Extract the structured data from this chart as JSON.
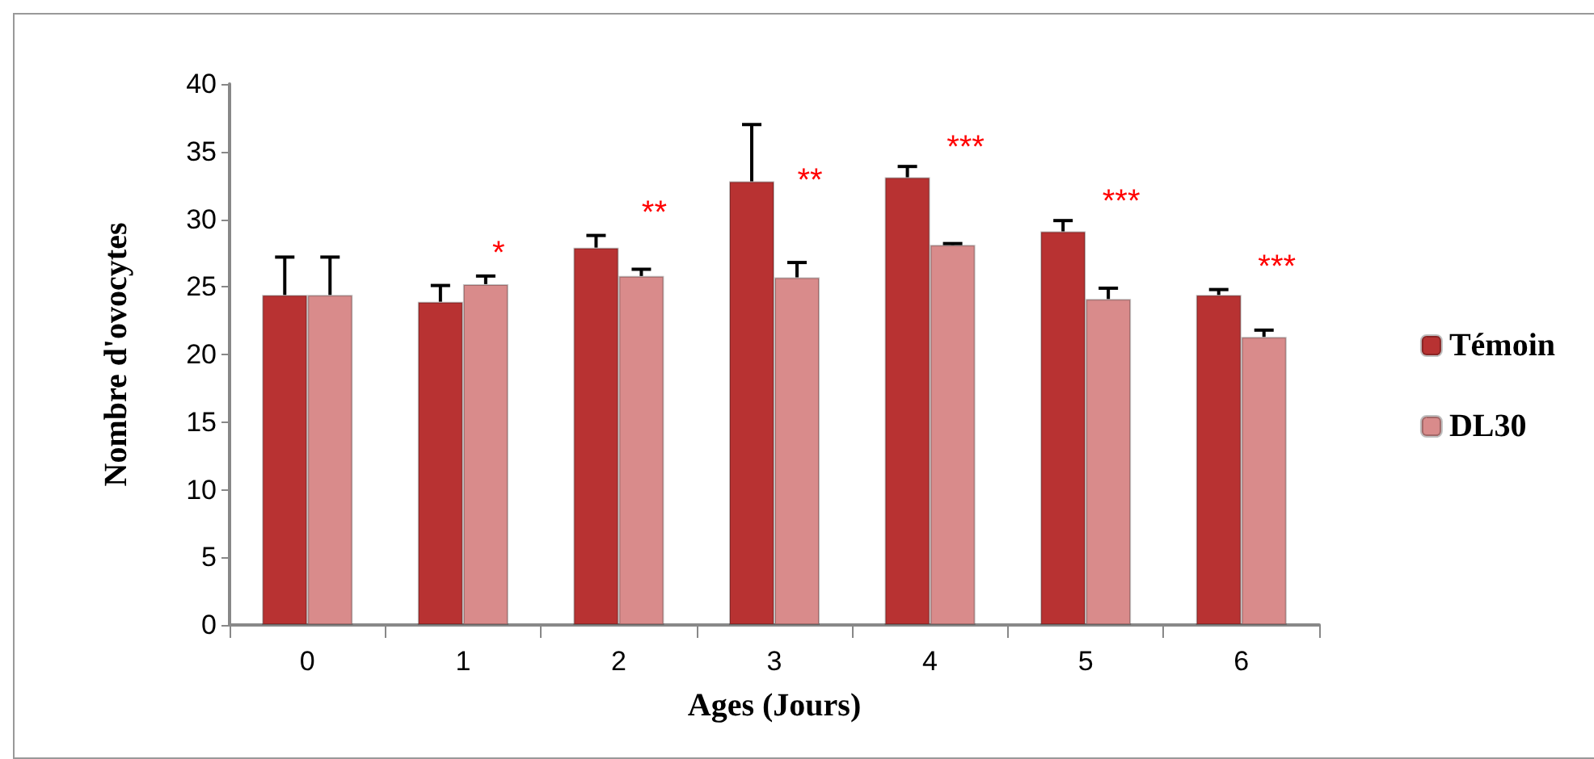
{
  "chart_data": {
    "type": "bar",
    "xlabel": "Ages (Jours)",
    "ylabel": "Nombre d'ovocytes",
    "categories": [
      "0",
      "1",
      "2",
      "3",
      "4",
      "5",
      "6"
    ],
    "series": [
      {
        "name": "Témoin",
        "color": "#b83232",
        "values": [
          24.4,
          23.9,
          27.9,
          32.8,
          33.1,
          29.1,
          24.4
        ],
        "errors": [
          [
            24.4,
            27.2
          ],
          [
            23.9,
            25.1
          ],
          [
            27.9,
            28.8
          ],
          [
            32.8,
            37.0
          ],
          [
            33.1,
            33.9
          ],
          [
            29.1,
            29.9
          ],
          [
            24.4,
            24.8
          ]
        ]
      },
      {
        "name": "DL30",
        "color": "#d98b8b",
        "values": [
          24.4,
          25.2,
          25.8,
          25.7,
          28.1,
          24.1,
          21.3
        ],
        "value_labels": [
          null,
          "*",
          "**",
          "**",
          "***",
          "***",
          "***"
        ],
        "errors": [
          [
            24.4,
            27.2
          ],
          [
            25.2,
            25.8
          ],
          [
            25.8,
            26.3
          ],
          [
            25.7,
            26.8
          ],
          [
            28.1,
            28.2
          ],
          [
            24.1,
            24.9
          ],
          [
            21.3,
            21.8
          ]
        ]
      }
    ],
    "ylim": [
      0,
      40
    ],
    "yticks": [
      0,
      5,
      10,
      15,
      20,
      25,
      30,
      35,
      40
    ],
    "grid": false,
    "legend": "right"
  }
}
